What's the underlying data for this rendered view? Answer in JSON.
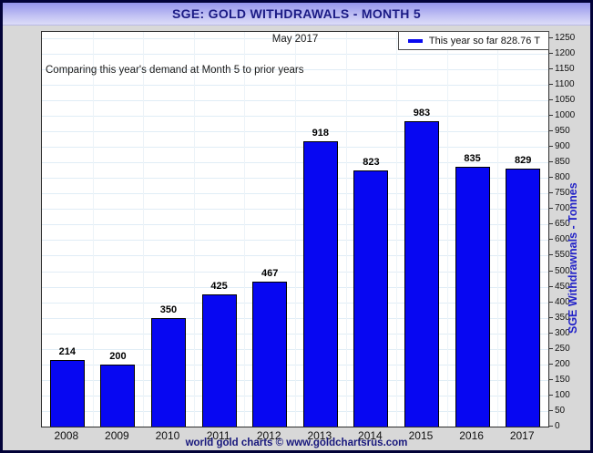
{
  "window": {
    "title": "SGE: GOLD WITHDRAWALS - MONTH 5"
  },
  "chart_data": {
    "type": "bar",
    "title": "SGE: GOLD WITHDRAWALS - MONTH 5",
    "subtitle": "May 2017",
    "annotation": "Comparing this year's demand at Month 5 to prior years",
    "legend": {
      "label": "This year so far 828.76 T",
      "position": "top-right",
      "marker_color": "#0a0af0"
    },
    "categories": [
      "2008",
      "2009",
      "2010",
      "2011",
      "2012",
      "2013",
      "2014",
      "2015",
      "2016",
      "2017"
    ],
    "values": [
      214,
      200,
      350,
      425,
      467,
      918,
      823,
      983,
      835,
      829
    ],
    "xlabel": "",
    "ylabel": "SGE Withdrawnals - Tonnes",
    "ylim": [
      0,
      1270
    ],
    "ytick_step": 50,
    "ytick_max": 1250,
    "grid": true,
    "bar_color": "#0707f2",
    "bar_border_color": "#000000",
    "legend_position": "top-right"
  },
  "footer": {
    "credit": "world gold charts © www.goldchartsrus.com"
  },
  "colors": {
    "titlebar_top": "#9595ec",
    "titlebar_bottom": "#dcdcf8",
    "title_text": "#1b1b85",
    "background": "#d8d8d8",
    "plot_background": "#ffffff",
    "gridline": "#e0edf6",
    "ylabel_text": "#2323c8",
    "footer_text": "#17177c",
    "outer_border": "#020238"
  }
}
